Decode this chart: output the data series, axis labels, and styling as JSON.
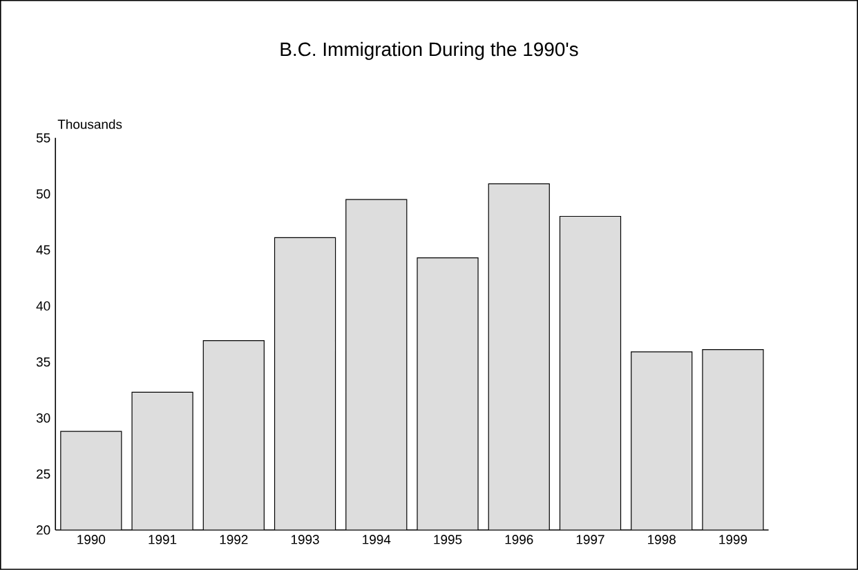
{
  "chart_data": {
    "type": "bar",
    "title": "B.C. Immigration During the 1990's",
    "ylabel": "Thousands",
    "categories": [
      "1990",
      "1991",
      "1992",
      "1993",
      "1994",
      "1995",
      "1996",
      "1997",
      "1998",
      "1999"
    ],
    "values": [
      28.8,
      32.3,
      36.9,
      46.1,
      49.5,
      44.3,
      50.9,
      48.0,
      35.9,
      36.1
    ],
    "color": "#dddddd",
    "ylim": [
      20,
      55
    ],
    "yticks": [
      20,
      25,
      30,
      35,
      40,
      45,
      50,
      55
    ]
  }
}
